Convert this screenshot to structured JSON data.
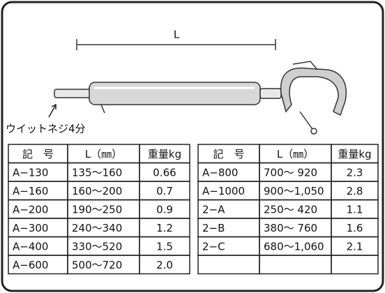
{
  "diagram": {
    "dimension_label": "L",
    "thread_note": "ウイットネジ4分"
  },
  "tables": [
    {
      "header": [
        "記　号",
        "L（㎜）",
        "重量kg"
      ],
      "rows": [
        [
          "A−130",
          "135〜160",
          "0.66"
        ],
        [
          "A−160",
          "160〜200",
          "0.7"
        ],
        [
          "A−200",
          "190〜250",
          "0.9"
        ],
        [
          "A−300",
          "240〜340",
          "1.2"
        ],
        [
          "A−400",
          "330〜520",
          "1.5"
        ],
        [
          "A−600",
          "500〜720",
          "2.0"
        ]
      ]
    },
    {
      "header": [
        "記　号",
        "L（㎜）",
        "重量kg"
      ],
      "rows": [
        [
          "A−800",
          "700〜 920",
          "2.3"
        ],
        [
          "A−1000",
          "900〜1,050",
          "2.8"
        ],
        [
          "2−A",
          "250〜 420",
          "1.1"
        ],
        [
          "2−B",
          "380〜 760",
          "1.6"
        ],
        [
          "2−C",
          "680〜1,060",
          "2.1"
        ]
      ]
    }
  ]
}
